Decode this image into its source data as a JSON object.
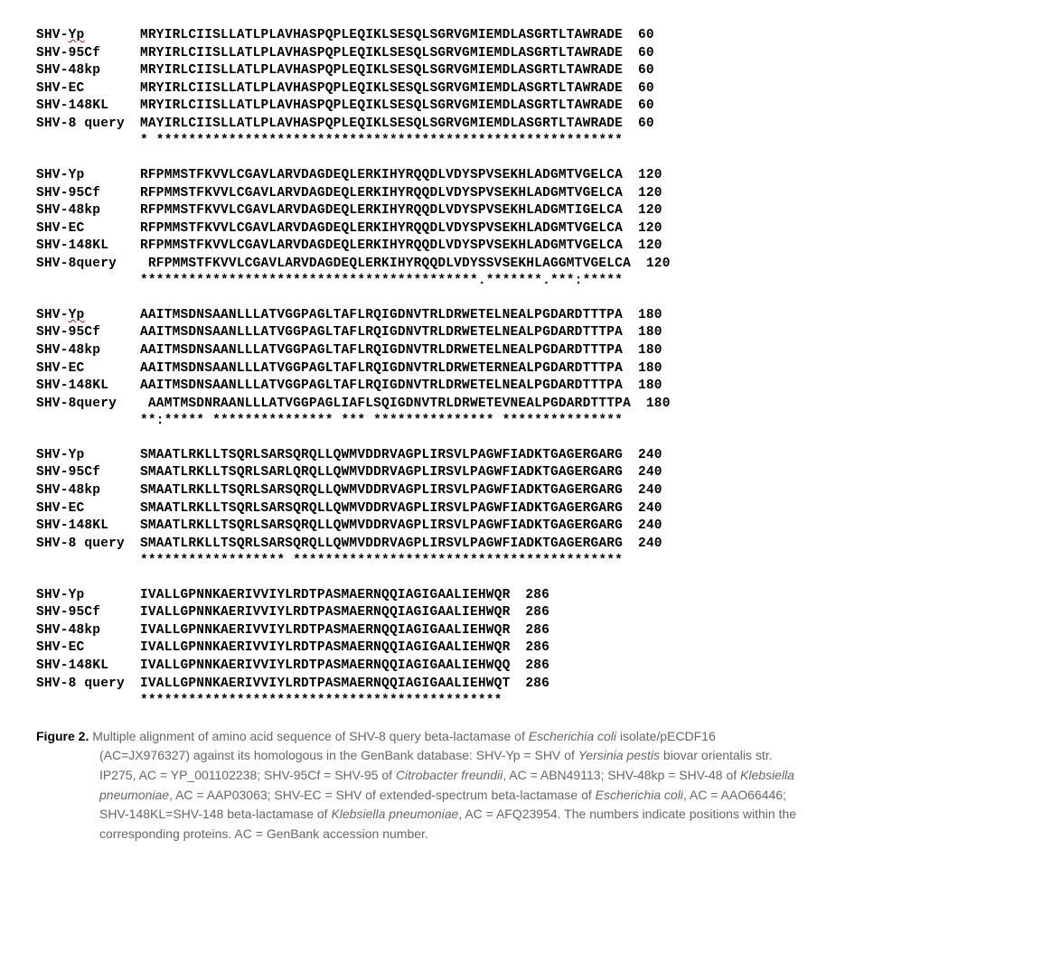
{
  "alignment": {
    "font_family": "Courier New",
    "font_weight": "bold",
    "text_color": "#000000",
    "squiggle_color": "#d40000",
    "blocks": [
      {
        "rows": [
          {
            "label_plain": "SHV-",
            "label_squiggle": "Yp",
            "label_after": "",
            "seq": "MRYIRLCIISLLATLPLAVHASPQPLEQIKLSESQLSGRVGMIEMDLASGRTLTAWRADE",
            "pos": "60"
          },
          {
            "label_plain": "SHV-95Cf",
            "label_squiggle": "",
            "label_after": "",
            "seq": "MRYIRLCIISLLATLPLAVHASPQPLEQIKLSESQLSGRVGMIEMDLASGRTLTAWRADE",
            "pos": "60"
          },
          {
            "label_plain": "SHV-48kp",
            "label_squiggle": "",
            "label_after": "",
            "seq": "MRYIRLCIISLLATLPLAVHASPQPLEQIKLSESQLSGRVGMIEMDLASGRTLTAWRADE",
            "pos": "60"
          },
          {
            "label_plain": "SHV-EC",
            "label_squiggle": "",
            "label_after": "",
            "seq": "MRYIRLCIISLLATLPLAVHASPQPLEQIKLSESQLSGRVGMIEMDLASGRTLTAWRADE",
            "pos": "60"
          },
          {
            "label_plain": "SHV-148KL",
            "label_squiggle": "",
            "label_after": "",
            "seq": "MRYIRLCIISLLATLPLAVHASPQPLEQIKLSESQLSGRVGMIEMDLASGRTLTAWRADE",
            "pos": "60"
          },
          {
            "label_plain": "SHV-8 query",
            "label_squiggle": "",
            "label_after": "",
            "seq": "MAYIRLCIISLLATLPLAVHASPQPLEQIKLSESQLSGRVGMIEMDLASGRTLTAWRADE",
            "pos": "60"
          }
        ],
        "consensus": "* **********************************************************"
      },
      {
        "rows": [
          {
            "label_plain": "SHV-Yp",
            "label_squiggle": "",
            "label_after": "",
            "seq": "RFPMMSTFKVVLCGAVLARVDAGDEQLERKIHYRQQDLVDYSPVSEKHLADGMTVGELCA",
            "pos": "120"
          },
          {
            "label_plain": "SHV-95Cf",
            "label_squiggle": "",
            "label_after": "",
            "seq": "RFPMMSTFKVVLCGAVLARVDAGDEQLERKIHYRQQDLVDYSPVSEKHLADGMTVGELCA",
            "pos": "120"
          },
          {
            "label_plain": "SHV-48kp",
            "label_squiggle": "",
            "label_after": "",
            "seq": "RFPMMSTFKVVLCGAVLARVDAGDEQLERKIHYRQQDLVDYSPVSEKHLADGMTIGELCA",
            "pos": "120"
          },
          {
            "label_plain": "SHV-EC",
            "label_squiggle": "",
            "label_after": "",
            "seq": "RFPMMSTFKVVLCGAVLARVDAGDEQLERKIHYRQQDLVDYSPVSEKHLADGMTVGELCA",
            "pos": "120"
          },
          {
            "label_plain": "SHV-148KL",
            "label_squiggle": "",
            "label_after": "",
            "seq": "RFPMMSTFKVVLCGAVLARVDAGDEQLERKIHYRQQDLVDYSPVSEKHLADGMTVGELCA",
            "pos": "120"
          },
          {
            "label_plain": "SHV-8query",
            "label_squiggle": "",
            "label_after": "",
            "seq": " RFPMMSTFKVVLCGAVLARVDAGDEQLERKIHYRQQDLVDYSSVSEKHLAGGMTVGELCA",
            "pos": "120"
          }
        ],
        "consensus": "******************************************.*******.***:*****"
      },
      {
        "rows": [
          {
            "label_plain": "SHV-",
            "label_squiggle": "Yp",
            "label_after": "",
            "seq": "AAITMSDNSAANLLLATVGGPAGLTAFLRQIGDNVTRLDRWETELNEALPGDARDTTTPA",
            "pos": "180"
          },
          {
            "label_plain": "SHV-95Cf",
            "label_squiggle": "",
            "label_after": "",
            "seq": "AAITMSDNSAANLLLATVGGPAGLTAFLRQIGDNVTRLDRWETELNEALPGDARDTTTPA",
            "pos": "180"
          },
          {
            "label_plain": "SHV-48kp",
            "label_squiggle": "",
            "label_after": "",
            "seq": "AAITMSDNSAANLLLATVGGPAGLTAFLRQIGDNVTRLDRWETELNEALPGDARDTTTPA",
            "pos": "180"
          },
          {
            "label_plain": "SHV-EC",
            "label_squiggle": "",
            "label_after": "",
            "seq": "AAITMSDNSAANLLLATVGGPAGLTAFLRQIGDNVTRLDRWETERNEALPGDARDTTTPA",
            "pos": "180"
          },
          {
            "label_plain": "SHV-148KL",
            "label_squiggle": "",
            "label_after": "",
            "seq": "AAITMSDNSAANLLLATVGGPAGLTAFLRQIGDNVTRLDRWETELNEALPGDARDTTTPA",
            "pos": "180"
          },
          {
            "label_plain": "SHV-8query",
            "label_squiggle": "",
            "label_after": "",
            "seq": " AAMTMSDNRAANLLLATVGGPAGLIAFLSQIGDNVTRLDRWETEVNEALPGDARDTTTPA",
            "pos": "180"
          }
        ],
        "consensus": "**:***** *************** *** *************** ***************"
      },
      {
        "rows": [
          {
            "label_plain": "SHV-Yp",
            "label_squiggle": "",
            "label_after": "",
            "seq": "SMAATLRKLLTSQRLSARSQRQLLQWMVDDRVAGPLIRSVLPAGWFIADKTGAGERGARG",
            "pos": "240"
          },
          {
            "label_plain": "SHV-95Cf",
            "label_squiggle": "",
            "label_after": "",
            "seq": "SMAATLRKLLTSQRLSARLQRQLLQWMVDDRVAGPLIRSVLPAGWFIADKTGAGERGARG",
            "pos": "240"
          },
          {
            "label_plain": "SHV-48kp",
            "label_squiggle": "",
            "label_after": "",
            "seq": "SMAATLRKLLTSQRLSARSQRQLLQWMVDDRVAGPLIRSVLPAGWFIADKTGAGERGARG",
            "pos": "240"
          },
          {
            "label_plain": "SHV-EC",
            "label_squiggle": "",
            "label_after": "",
            "seq": "SMAATLRKLLTSQRLSARSQRQLLQWMVDDRVAGPLIRSVLPAGWFIADKTGAGERGARG",
            "pos": "240"
          },
          {
            "label_plain": "SHV-148KL",
            "label_squiggle": "",
            "label_after": "",
            "seq": "SMAATLRKLLTSQRLSARSQRQLLQWMVDDRVAGPLIRSVLPAGWFIADKTGAGERGARG",
            "pos": "240"
          },
          {
            "label_plain": "SHV-8 query",
            "label_squiggle": "",
            "label_after": "",
            "seq": "SMAATLRKLLTSQRLSARSQRQLLQWMVDDRVAGPLIRSVLPAGWFIADKTGAGERGARG",
            "pos": "240"
          }
        ],
        "consensus": "****************** *****************************************"
      },
      {
        "rows": [
          {
            "label_plain": "SHV-Yp",
            "label_squiggle": "",
            "label_after": "",
            "seq": "IVALLGPNNKAERIVVIYLRDTPASMAERNQQIAGIGAALIEHWQR",
            "pos": "286"
          },
          {
            "label_plain": "SHV-95Cf",
            "label_squiggle": "",
            "label_after": "",
            "seq": "IVALLGPNNKAERIVVIYLRDTPASMAERNQQIAGIGAALIEHWQR",
            "pos": "286"
          },
          {
            "label_plain": "SHV-48kp",
            "label_squiggle": "",
            "label_after": "",
            "seq": "IVALLGPNNKAERIVVIYLRDTPASMAERNQQIAGIGAALIEHWQR",
            "pos": "286"
          },
          {
            "label_plain": "SHV-EC",
            "label_squiggle": "",
            "label_after": "",
            "seq": "IVALLGPNNKAERIVVIYLRDTPASMAERNQQIAGIGAALIEHWQR",
            "pos": "286"
          },
          {
            "label_plain": "SHV-148KL",
            "label_squiggle": "",
            "label_after": "",
            "seq": "IVALLGPNNKAERIVVIYLRDTPASMAERNQQIAGIGAALIEHWQQ",
            "pos": "286"
          },
          {
            "label_plain": "SHV-8 query",
            "label_squiggle": "",
            "label_after": "",
            "seq": "IVALLGPNNKAERIVVIYLRDTPASMAERNQQIAGIGAALIEHWQT",
            "pos": "286"
          }
        ],
        "consensus": "*********************************************"
      }
    ]
  },
  "caption": {
    "figure_label": "Figure 2.",
    "line1_a": " Multiple alignment of amino acid sequence of SHV-8 query beta-lactamase of ",
    "line1_em1": "Escherichia coli",
    "line1_b": " isolate/pECDF16",
    "line2_a": "(AC=JX976327) against its homologous in the GenBank database: SHV-Yp = SHV of ",
    "line2_em1": "Yersinia pestis",
    "line2_b": " biovar orientalis str.",
    "line3_a": "IP275, AC = YP_001102238; SHV-95Cf = SHV-95 of ",
    "line3_em1": "Citrobacter freundii",
    "line3_b": ", AC = ABN49113; SHV-48kp = SHV-48 of ",
    "line3_em2": "Klebsiella",
    "line4_em1": "pneumoniae",
    "line4_a": ", AC = AAP03063; SHV-EC = SHV of extended-spectrum beta-lactamase of ",
    "line4_em2": "Escherichia coli",
    "line4_b": ", AC = AAO66446;",
    "line5_a": "SHV-148KL=SHV-148 beta-lactamase of ",
    "line5_em1": "Klebsiella pneumoniae",
    "line5_b": ", AC = AFQ23954. The numbers indicate positions within the",
    "line6_a": "corresponding proteins. AC = GenBank accession number."
  },
  "style": {
    "caption_color": "#666666",
    "background": "#ffffff"
  }
}
